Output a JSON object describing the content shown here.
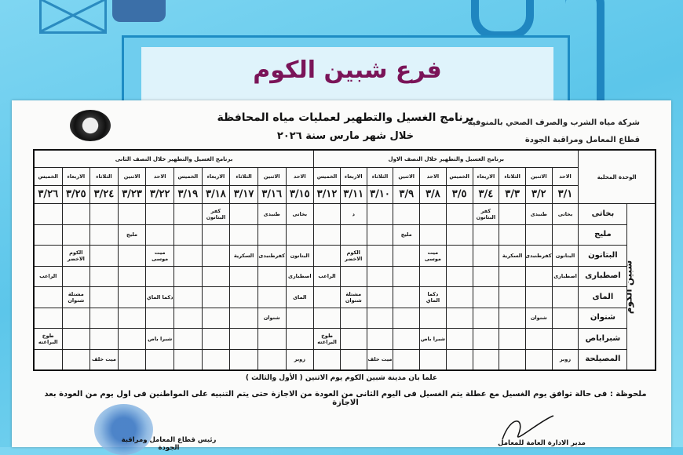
{
  "banner": {
    "title": "فرع شبين الكوم"
  },
  "document": {
    "company": "شركة مياه الشرب والصرف الصحي بالمنوفية",
    "sector": "قطاع المعامل ومراقبة الجودة",
    "title": "برنامج الغسيل والتطهير لعمليات مياه المحافظة",
    "subtitle": "خلال شهر مارس سنة ٢٠٢٦",
    "logo_text": "شركة مياه الشرب والصرف الصحي بالمنوفية"
  },
  "table": {
    "unit_header": "الوحدة المحلية",
    "group_label": "شبين الكوم",
    "first_half_title": "برنامج الغسيل والتطهير خلال النصف الاول",
    "second_half_title": "برنامج الغسيل والتطهير خلال النصف الثانى",
    "days": [
      "الاحد",
      "الاثنين",
      "الثلاثاء",
      "الاربعاء",
      "الخميس",
      "الاحد",
      "الاثنين",
      "الثلاثاء",
      "الاربعاء",
      "الخميس",
      "الاحد",
      "الاثنين",
      "الثلاثاء",
      "الاربعاء",
      "الخميس",
      "الاحد",
      "الاثنين",
      "الثلاثاء",
      "الاربعاء",
      "الخميس"
    ],
    "dates": [
      "٣/١",
      "٣/٢",
      "٣/٣",
      "٣/٤",
      "٣/٥",
      "٣/٨",
      "٣/٩",
      "٣/١٠",
      "٣/١١",
      "٣/١٢",
      "٣/١٥",
      "٣/١٦",
      "٣/١٧",
      "٣/١٨",
      "٣/١٩",
      "٣/٢٢",
      "٣/٢٣",
      "٣/٢٤",
      "٣/٢٥",
      "٣/٢٦"
    ],
    "rows": [
      {
        "unit": "بخاتى",
        "cells": [
          "بخاتى",
          "طنبدى",
          "",
          "كفر البتانون",
          "",
          "",
          "",
          "",
          "د",
          "",
          "بخاتى",
          "طنبدى",
          "",
          "كفر البتانون",
          "",
          "",
          "",
          "",
          "",
          ""
        ]
      },
      {
        "unit": "مليج",
        "cells": [
          "",
          "",
          "",
          "",
          "",
          "",
          "مليج",
          "",
          "",
          "",
          "",
          "",
          "",
          "",
          "",
          "",
          "مليج",
          "",
          "",
          ""
        ]
      },
      {
        "unit": "البتانون",
        "cells": [
          "البتانون",
          "كفرطنبدى",
          "السكرية",
          "",
          "",
          "ميت موسى",
          "",
          "",
          "الكوم الاخضر",
          "",
          "البتانون",
          "كفرطنبدى",
          "السكرية",
          "",
          "",
          "ميت موسى",
          "",
          "",
          "الكوم الاخضر",
          ""
        ]
      },
      {
        "unit": "اصطبارى",
        "cells": [
          "اصطبارى",
          "",
          "",
          "",
          "",
          "",
          "",
          "",
          "",
          "الراعب",
          "اصطبارى",
          "",
          "",
          "",
          "",
          "",
          "",
          "",
          "",
          "الراعب"
        ]
      },
      {
        "unit": "الماى",
        "cells": [
          "",
          "",
          "",
          "",
          "",
          "دكما الماي",
          "",
          "",
          "مشتلة شنوان",
          "",
          "الماى",
          "",
          "",
          "",
          "",
          "دكما الماي",
          "",
          "",
          "مشتلة شنوان",
          ""
        ]
      },
      {
        "unit": "شنوان",
        "cells": [
          "",
          "شنوان",
          "",
          "",
          "",
          "",
          "",
          "",
          "",
          "",
          "",
          "شنوان",
          "",
          "",
          "",
          "",
          "",
          "",
          "",
          ""
        ]
      },
      {
        "unit": "شبراباص",
        "cells": [
          "",
          "",
          "",
          "",
          "",
          "شبرا باص",
          "",
          "",
          "",
          "طوخ البراغته",
          "",
          "",
          "",
          "",
          "",
          "شبرا باص",
          "",
          "",
          "",
          "طوخ البراغته"
        ]
      },
      {
        "unit": "المصيلحة",
        "cells": [
          "زوبر",
          "",
          "",
          "",
          "",
          "",
          "",
          "ميت خلف",
          "",
          "",
          "زوبر",
          "",
          "",
          "",
          "",
          "",
          "",
          "ميت خلف",
          "",
          ""
        ]
      }
    ]
  },
  "notes": {
    "city_note": "علما بان مدينة شبين الكوم يوم الاثنين ( الأول والثالث )",
    "remark": "ملحوظة : فى حالة توافق يوم الغسيل مع عطلة يتم الغسيل فى اليوم الثانى من العودة من الاجازة حتى يتم التنبيه على المواطنين فى اول يوم من العودة بعد الاجازة"
  },
  "signatures": {
    "left": "رئيس قطاع المعامل ومراقبة الجودة",
    "right": "مدير الادارة العامة للمعامل"
  },
  "colors": {
    "title": "#7a1458",
    "background": "#5cc6ea",
    "pipe": "#1f86c0"
  }
}
